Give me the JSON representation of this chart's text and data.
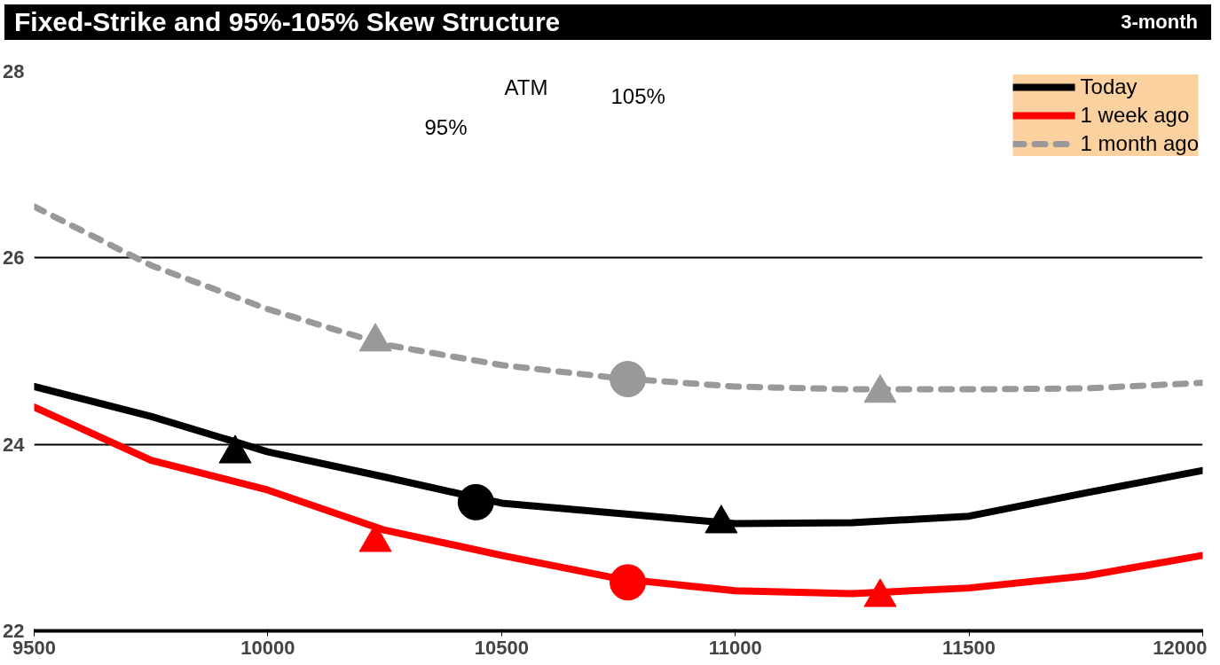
{
  "chart_data": {
    "type": "line",
    "title": "Fixed-Strike and 95%-105% Skew Structure",
    "subtitle": "3-month",
    "x": [
      9500,
      9750,
      10000,
      10250,
      10500,
      10750,
      11000,
      11250,
      11500,
      11750,
      12000
    ],
    "series": [
      {
        "name": "Today",
        "color": "#000000",
        "line_style": "solid",
        "marker": "none",
        "values": [
          24.62,
          24.3,
          23.92,
          23.65,
          23.37,
          23.26,
          23.15,
          23.16,
          23.23,
          23.48,
          23.72
        ]
      },
      {
        "name": "1 week ago",
        "color": "#ff0000",
        "line_style": "solid",
        "marker": "none",
        "values": [
          24.4,
          23.83,
          23.51,
          23.08,
          22.81,
          22.56,
          22.43,
          22.4,
          22.46,
          22.59,
          22.81
        ]
      },
      {
        "name": "1 month ago",
        "color": "#999999",
        "line_style": "dashed",
        "marker": "none",
        "values": [
          26.55,
          25.92,
          25.45,
          25.07,
          24.85,
          24.71,
          24.62,
          24.59,
          24.59,
          24.6,
          24.66
        ]
      },
      {
        "type": "scatter",
        "color": "#000000",
        "marker": "triangle",
        "x": [
          9930,
          10970
        ],
        "values": [
          23.9,
          23.15
        ]
      },
      {
        "type": "scatter",
        "color": "#000000",
        "marker": "circle",
        "x": [
          10445
        ],
        "values": [
          23.38
        ]
      },
      {
        "type": "scatter",
        "color": "#ff0000",
        "marker": "triangle",
        "x": [
          10230,
          11310
        ],
        "values": [
          22.95,
          22.36
        ]
      },
      {
        "type": "scatter",
        "color": "#ff0000",
        "marker": "circle",
        "x": [
          10770
        ],
        "values": [
          22.52
        ]
      },
      {
        "type": "scatter",
        "color": "#999999",
        "marker": "triangle",
        "x": [
          10230,
          11310
        ],
        "values": [
          25.1,
          24.55
        ]
      },
      {
        "type": "scatter",
        "color": "#999999",
        "marker": "circle",
        "x": [
          10770
        ],
        "values": [
          24.7
        ]
      }
    ],
    "annotations": [
      "95%",
      "ATM",
      "105%"
    ],
    "xlim": [
      9500,
      12000
    ],
    "xticks": [
      9500,
      10000,
      10500,
      11000,
      11500,
      12000
    ],
    "ylim": [
      22,
      28
    ],
    "yticks": [
      22,
      24,
      26,
      28
    ],
    "grid": "y",
    "legend": "top right"
  }
}
